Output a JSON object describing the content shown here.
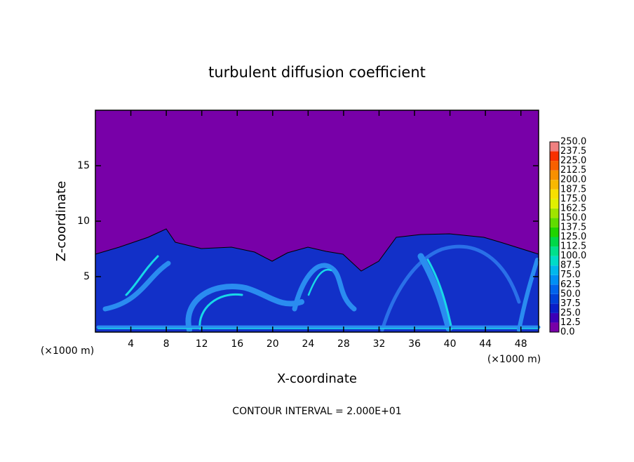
{
  "chart_data": {
    "type": "heatmap",
    "title": "turbulent diffusion coefficient",
    "x_label": "X-coordinate",
    "y_label": "Z-coordinate",
    "x_unit": "(×1000 m)",
    "y_unit": "(×1000 m)",
    "note": "CONTOUR INTERVAL = 2.000E+01",
    "xlim": [
      0,
      50
    ],
    "xticks": [
      4,
      8,
      12,
      16,
      20,
      24,
      28,
      32,
      36,
      40,
      44,
      48
    ],
    "ylim": [
      0,
      20
    ],
    "yticks": [
      5,
      10,
      15
    ],
    "colorbar": {
      "levels": [
        {
          "value": 0,
          "label": "0.0"
        },
        {
          "value": 12.5,
          "label": "12.5"
        },
        {
          "value": 25,
          "label": "25.0"
        },
        {
          "value": 37.5,
          "label": "37.5"
        },
        {
          "value": 50,
          "label": "50.0"
        },
        {
          "value": 62.5,
          "label": "62.5"
        },
        {
          "value": 75,
          "label": "75.0"
        },
        {
          "value": 87.5,
          "label": "87.5"
        },
        {
          "value": 100,
          "label": "100.0"
        },
        {
          "value": 112.5,
          "label": "112.5"
        },
        {
          "value": 125,
          "label": "125.0"
        },
        {
          "value": 137.5,
          "label": "137.5"
        },
        {
          "value": 150,
          "label": "150.0"
        },
        {
          "value": 162.5,
          "label": "162.5"
        },
        {
          "value": 175,
          "label": "175.0"
        },
        {
          "value": 187.5,
          "label": "187.5"
        },
        {
          "value": 200,
          "label": "200.0"
        },
        {
          "value": 212.5,
          "label": "212.5"
        },
        {
          "value": 225,
          "label": "225.0"
        },
        {
          "value": 237.5,
          "label": "237.5"
        },
        {
          "value": 250,
          "label": "250.0"
        }
      ],
      "colors": [
        "#7800a8",
        "#3c00b8",
        "#0a1ec8",
        "#0040d8",
        "#0064ec",
        "#0090f4",
        "#00b8ec",
        "#00dcc8",
        "#00e08c",
        "#00d848",
        "#20d400",
        "#60dc00",
        "#a0e400",
        "#e0f000",
        "#f8e000",
        "#f8b800",
        "#f89000",
        "#f86000",
        "#f83000",
        "#f08080"
      ]
    }
  }
}
